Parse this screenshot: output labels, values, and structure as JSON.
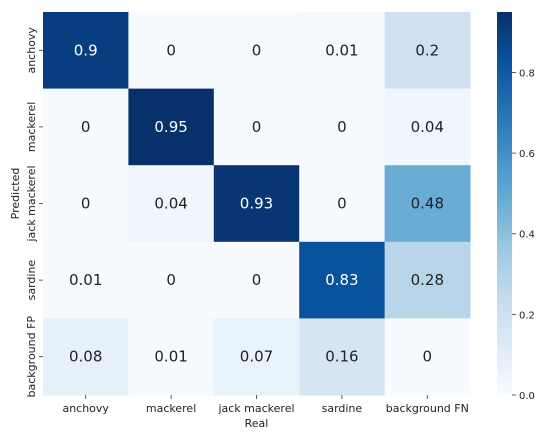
{
  "chart_data": {
    "type": "heatmap",
    "title": "",
    "xlabel": "Real",
    "ylabel": "Predicted",
    "x_categories": [
      "anchovy",
      "mackerel",
      "jack mackerel",
      "sardine",
      "background FN"
    ],
    "y_categories": [
      "anchovy",
      "mackerel",
      "jack mackerel",
      "sardine",
      "background FP"
    ],
    "values": [
      [
        0.9,
        0,
        0,
        0.01,
        0.2
      ],
      [
        0,
        0.95,
        0,
        0,
        0.04
      ],
      [
        0,
        0.04,
        0.93,
        0,
        0.48
      ],
      [
        0.01,
        0,
        0,
        0.83,
        0.28
      ],
      [
        0.08,
        0.01,
        0.07,
        0.16,
        0
      ]
    ],
    "colorbar": {
      "colormap": "Blues",
      "range": [
        0,
        0.95
      ],
      "ticks": [
        "0.0",
        "0.2",
        "0.4",
        "0.6",
        "0.8"
      ]
    },
    "colors": {
      "low": "#f7fbff",
      "high": "#08306b"
    }
  }
}
